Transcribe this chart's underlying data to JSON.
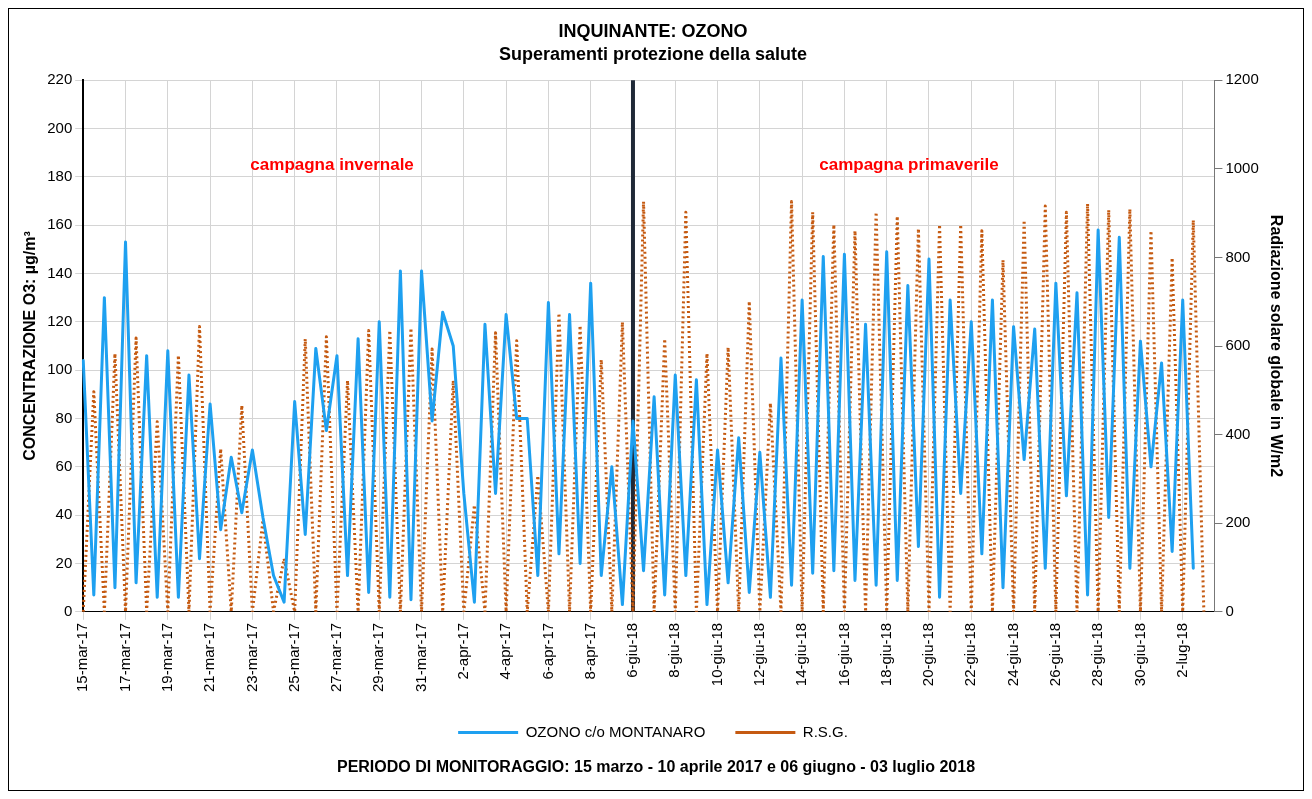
{
  "chart_data": {
    "type": "line",
    "title": "INQUINANTE: OZONO",
    "subtitle": "Superamenti protezione della salute",
    "ylabel": "CONCENTRAZIONE O3: µg/m³",
    "y2label": "Radiazione solare globale in W/m2",
    "annotations": [
      "campagna invernale",
      "campagna primaverile",
      "PERIODO DI MONITORAGGIO: 15 marzo - 10 aprile 2017 e 06 giugno - 03 luglio 2018"
    ],
    "categories": [
      "15-mar-17",
      null,
      null,
      null,
      "17-mar-17",
      null,
      null,
      null,
      "19-mar-17",
      null,
      null,
      null,
      "21-mar-17",
      null,
      null,
      null,
      "23-mar-17",
      null,
      null,
      null,
      "25-mar-17",
      null,
      null,
      null,
      "27-mar-17",
      null,
      null,
      null,
      "29-mar-17",
      null,
      null,
      null,
      "31-mar-17",
      null,
      null,
      null,
      "2-apr-17",
      null,
      null,
      null,
      "4-apr-17",
      null,
      null,
      null,
      "6-apr-17",
      null,
      null,
      null,
      "8-apr-17",
      null,
      null,
      null,
      "6-giu-18",
      null,
      null,
      null,
      "8-giu-18",
      null,
      null,
      null,
      "10-giu-18",
      null,
      null,
      null,
      "12-giu-18",
      null,
      null,
      null,
      "14-giu-18",
      null,
      null,
      null,
      "16-giu-18",
      null,
      null,
      null,
      "18-giu-18",
      null,
      null,
      null,
      "20-giu-18",
      null,
      null,
      null,
      "22-giu-18",
      null,
      null,
      null,
      "24-giu-18",
      null,
      null,
      null,
      "26-giu-18",
      null,
      null,
      null,
      "28-giu-18",
      null,
      null,
      null,
      "30-giu-18",
      null,
      null,
      null,
      "2-lug-18",
      null,
      null,
      null
    ],
    "ylim": [
      0,
      220
    ],
    "yticks": [
      0,
      20,
      40,
      60,
      80,
      100,
      120,
      140,
      160,
      180,
      200,
      220
    ],
    "y2lim": [
      0,
      1200
    ],
    "y2ticks": [
      0,
      200,
      400,
      600,
      800,
      1000,
      1200
    ],
    "grid": true,
    "legend": "bottom",
    "ref_lines": [
      {
        "axis": "x",
        "value": "6-giu-18",
        "color": "#1f2937"
      }
    ],
    "series": [
      {
        "name": "OZONO c/o MONTANARO",
        "color": "#1ea0f0",
        "line_style": "solid",
        "values": [
          104,
          7,
          130,
          10,
          153,
          12,
          106,
          6,
          108,
          6,
          98,
          22,
          86,
          34,
          64,
          41,
          67,
          39,
          15,
          4,
          87,
          32,
          109,
          75,
          106,
          15,
          113,
          8,
          120,
          6,
          141,
          5,
          141,
          79,
          124,
          110,
          49,
          4,
          119,
          49,
          123,
          80,
          80,
          15,
          128,
          24,
          123,
          20,
          136,
          15,
          60,
          3,
          79,
          17,
          89,
          7,
          98,
          15,
          96,
          3,
          67,
          12,
          72,
          8,
          66,
          6,
          105,
          11,
          129,
          16,
          147,
          17,
          148,
          13,
          119,
          11,
          149,
          13,
          135,
          27,
          146,
          6,
          129,
          49,
          120,
          24,
          129,
          10,
          118,
          63,
          117,
          18,
          136,
          48,
          132,
          7,
          158,
          39,
          155,
          18,
          112,
          60,
          103,
          25,
          129,
          18,
          null,
          null
        ]
      },
      {
        "name": "R.S.G.",
        "color": "#c55a11",
        "line_style": "dotted",
        "axis": "y2",
        "values": [
          0,
          497,
          0,
          583,
          0,
          618,
          0,
          429,
          0,
          579,
          0,
          644,
          0,
          368,
          0,
          466,
          0,
          207,
          0,
          120,
          0,
          616,
          0,
          621,
          0,
          522,
          0,
          635,
          0,
          635,
          0,
          640,
          0,
          593,
          0,
          522,
          0,
          241,
          0,
          630,
          0,
          612,
          0,
          307,
          0,
          674,
          0,
          646,
          0,
          569,
          0,
          654,
          0,
          926,
          0,
          616,
          0,
          902,
          0,
          583,
          0,
          597,
          0,
          701,
          0,
          471,
          0,
          926,
          0,
          902,
          0,
          874,
          0,
          860,
          0,
          902,
          0,
          893,
          0,
          865,
          0,
          874,
          0,
          874,
          0,
          860,
          0,
          794,
          0,
          884,
          0,
          916,
          0,
          902,
          0,
          921,
          0,
          907,
          0,
          909,
          0,
          860,
          0,
          799,
          0,
          884,
          0,
          null
        ]
      }
    ]
  }
}
